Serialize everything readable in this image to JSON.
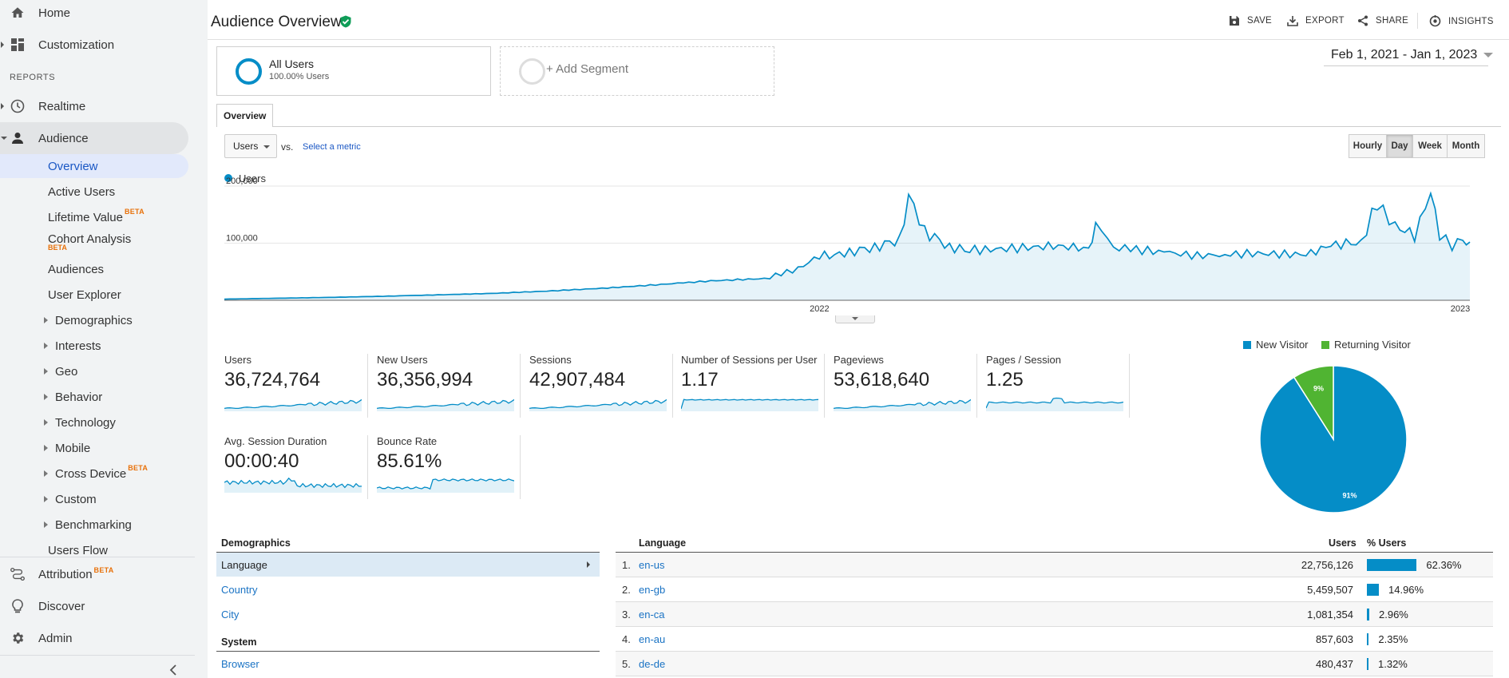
{
  "sidebar": {
    "top": [
      {
        "label": "Home",
        "icon": "home-icon"
      },
      {
        "label": "Customization",
        "icon": "dashboard-icon"
      }
    ],
    "reports_header": "REPORTS",
    "reports": [
      {
        "label": "Realtime",
        "icon": "clock-icon"
      },
      {
        "label": "Audience",
        "icon": "person-icon"
      }
    ],
    "audience_items": [
      {
        "label": "Overview"
      },
      {
        "label": "Active Users"
      },
      {
        "label": "Lifetime Value",
        "badge": "BETA"
      },
      {
        "label": "Cohort Analysis",
        "badge": "BETA"
      },
      {
        "label": "Audiences"
      },
      {
        "label": "User Explorer"
      },
      {
        "label": "Demographics"
      },
      {
        "label": "Interests"
      },
      {
        "label": "Geo"
      },
      {
        "label": "Behavior"
      },
      {
        "label": "Technology"
      },
      {
        "label": "Mobile"
      },
      {
        "label": "Cross Device",
        "badge": "BETA"
      },
      {
        "label": "Custom"
      },
      {
        "label": "Benchmarking"
      },
      {
        "label": "Users Flow"
      }
    ],
    "bottom": [
      {
        "label": "Attribution",
        "badge": "BETA",
        "icon": "attribution-icon"
      },
      {
        "label": "Discover",
        "icon": "lightbulb-icon"
      },
      {
        "label": "Admin",
        "icon": "gear-icon"
      }
    ]
  },
  "header": {
    "title": "Audience Overview",
    "actions": {
      "save": "SAVE",
      "export": "EXPORT",
      "share": "SHARE",
      "insights": "INSIGHTS"
    }
  },
  "segments": {
    "primary_name": "All Users",
    "primary_sub": "100.00% Users",
    "add_label": "+ Add Segment"
  },
  "date_range": "Feb 1, 2021 - Jan 1, 2023",
  "tabs": [
    "Overview"
  ],
  "chart_controls": {
    "metric": "Users",
    "vs": "vs.",
    "select_metric": "Select a metric",
    "granularity": [
      "Hourly",
      "Day",
      "Week",
      "Month"
    ],
    "active_granularity": "Day"
  },
  "chart_data": {
    "type": "area",
    "series": [
      {
        "name": "Users"
      }
    ],
    "color": "#058dc7",
    "x_start": "2021-02-01",
    "x_end": "2023-01-01",
    "x_ticks": [
      "2022",
      "2023"
    ],
    "y_ticks": [
      "200,000",
      "100,000"
    ],
    "ylim": [
      0,
      200000
    ],
    "legend": "top-left",
    "grid": true,
    "points": [
      [
        "2021-02-01",
        2000
      ],
      [
        "2021-03-01",
        3500
      ],
      [
        "2021-04-01",
        5000
      ],
      [
        "2021-05-01",
        7000
      ],
      [
        "2021-06-01",
        9500
      ],
      [
        "2021-07-01",
        12000
      ],
      [
        "2021-08-01",
        16000
      ],
      [
        "2021-09-01",
        21000
      ],
      [
        "2021-10-01",
        27000
      ],
      [
        "2021-11-01",
        34000
      ],
      [
        "2021-12-01",
        38000
      ],
      [
        "2021-12-20",
        55000
      ],
      [
        "2022-01-01",
        78000
      ],
      [
        "2022-01-15",
        82000
      ],
      [
        "2022-02-01",
        92000
      ],
      [
        "2022-02-15",
        105000
      ],
      [
        "2022-02-20",
        185000
      ],
      [
        "2022-03-01",
        120000
      ],
      [
        "2022-03-15",
        92000
      ],
      [
        "2022-04-01",
        88000
      ],
      [
        "2022-05-01",
        93000
      ],
      [
        "2022-05-15",
        95000
      ],
      [
        "2022-06-01",
        90000
      ],
      [
        "2022-06-05",
        133000
      ],
      [
        "2022-06-15",
        92000
      ],
      [
        "2022-07-01",
        88000
      ],
      [
        "2022-08-01",
        78000
      ],
      [
        "2022-09-01",
        82000
      ],
      [
        "2022-10-01",
        80000
      ],
      [
        "2022-10-15",
        97000
      ],
      [
        "2022-11-01",
        100000
      ],
      [
        "2022-11-10",
        172000
      ],
      [
        "2022-11-20",
        130000
      ],
      [
        "2022-12-01",
        112000
      ],
      [
        "2022-12-10",
        190000
      ],
      [
        "2022-12-15",
        115000
      ],
      [
        "2022-12-22",
        95000
      ],
      [
        "2022-12-28",
        108000
      ],
      [
        "2023-01-01",
        102000
      ]
    ]
  },
  "metrics": [
    {
      "label": "Users",
      "value": "36,724,764",
      "spark": "growth"
    },
    {
      "label": "New Users",
      "value": "36,356,994",
      "spark": "growth"
    },
    {
      "label": "Sessions",
      "value": "42,907,484",
      "spark": "growth"
    },
    {
      "label": "Number of Sessions per User",
      "value": "1.17",
      "spark": "flat"
    },
    {
      "label": "Pageviews",
      "value": "53,618,640",
      "spark": "growth"
    },
    {
      "label": "Pages / Session",
      "value": "1.25",
      "spark": "flat-bump"
    },
    {
      "label": "Avg. Session Duration",
      "value": "00:00:40",
      "spark": "decline"
    },
    {
      "label": "Bounce Rate",
      "value": "85.61%",
      "spark": "step"
    }
  ],
  "pie": {
    "legend": [
      {
        "label": "New Visitor",
        "color": "#058dc7"
      },
      {
        "label": "Returning Visitor",
        "color": "#50b432"
      }
    ],
    "slices": [
      {
        "label": "91%",
        "value": 91,
        "color": "#058dc7"
      },
      {
        "label": "9%",
        "value": 9,
        "color": "#50b432"
      }
    ]
  },
  "demographics": {
    "header": "Demographics",
    "items": [
      "Language",
      "Country",
      "City"
    ],
    "system_header": "System",
    "system_items": [
      "Browser"
    ]
  },
  "language_table": {
    "header": "Language",
    "col_users": "Users",
    "col_pct": "% Users",
    "rows": [
      {
        "num": "1.",
        "name": "en-us",
        "users": "22,756,126",
        "pct": "62.36%",
        "share": 62.36
      },
      {
        "num": "2.",
        "name": "en-gb",
        "users": "5,459,507",
        "pct": "14.96%",
        "share": 14.96
      },
      {
        "num": "3.",
        "name": "en-ca",
        "users": "1,081,354",
        "pct": "2.96%",
        "share": 2.96
      },
      {
        "num": "4.",
        "name": "en-au",
        "users": "857,603",
        "pct": "2.35%",
        "share": 2.35
      },
      {
        "num": "5.",
        "name": "de-de",
        "users": "480,437",
        "pct": "1.32%",
        "share": 1.32
      }
    ]
  }
}
